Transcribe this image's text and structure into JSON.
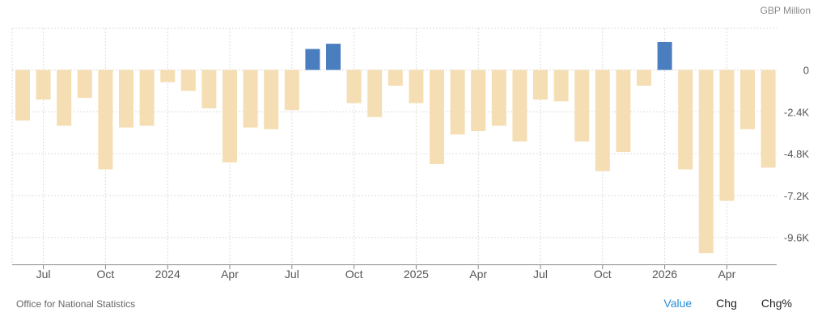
{
  "unit_label": "GBP Million",
  "source": "Office for National Statistics",
  "tabs": [
    {
      "label": "Value",
      "active": true
    },
    {
      "label": "Chg",
      "active": false
    },
    {
      "label": "Chg%",
      "active": false
    }
  ],
  "colors": {
    "negative": "#f5deb3",
    "positive": "#4a7ebf",
    "grid": "#dddddd",
    "axis": "#888888"
  },
  "chart_data": {
    "type": "bar",
    "title": "",
    "xlabel": "",
    "ylabel": "GBP Million",
    "ylim": [
      -11400,
      2400
    ],
    "yticks": [
      0,
      -2400,
      -4800,
      -7200,
      -9600
    ],
    "ytick_labels": [
      "0",
      "-2.4K",
      "-4.8K",
      "-7.2K",
      "-9.6K"
    ],
    "xtick_labels": [
      {
        "label": "Jul",
        "index": 1
      },
      {
        "label": "Oct",
        "index": 4
      },
      {
        "label": "2024",
        "index": 7
      },
      {
        "label": "Apr",
        "index": 10
      },
      {
        "label": "Jul",
        "index": 13
      },
      {
        "label": "Oct",
        "index": 16
      },
      {
        "label": "2025",
        "index": 19
      },
      {
        "label": "Apr",
        "index": 22
      },
      {
        "label": "Jul",
        "index": 25
      },
      {
        "label": "Oct",
        "index": 28
      },
      {
        "label": "2026",
        "index": 31
      },
      {
        "label": "Apr",
        "index": 34
      }
    ],
    "categories": [
      "Jun 2023",
      "Jul 2023",
      "Aug 2023",
      "Sep 2023",
      "Oct 2023",
      "Nov 2023",
      "Dec 2023",
      "Jan 2024",
      "Feb 2024",
      "Mar 2024",
      "Apr 2024",
      "May 2024",
      "Jun 2024",
      "Jul 2024",
      "Aug 2024",
      "Sep 2024",
      "Oct 2024",
      "Nov 2024",
      "Dec 2024",
      "Jan 2025",
      "Feb 2025",
      "Mar 2025",
      "Apr 2025",
      "May 2025",
      "Jun 2025",
      "Jul 2025",
      "Aug 2025",
      "Sep 2025",
      "Oct 2025",
      "Nov 2025",
      "Dec 2025",
      "Jan 2026",
      "Feb 2026",
      "Mar 2026",
      "Apr 2026",
      "May 2026",
      "Jun 2026"
    ],
    "values": [
      -2900,
      -1700,
      -3200,
      -1600,
      -5700,
      -3300,
      -3200,
      -700,
      -1200,
      -2200,
      -5300,
      -3300,
      -3400,
      -2300,
      1200,
      1500,
      -1900,
      -2700,
      -900,
      -1900,
      -5400,
      -3700,
      -3500,
      -3200,
      -4100,
      -1700,
      -1800,
      -4100,
      -5800,
      -4700,
      -900,
      1600,
      -5700,
      -10500,
      -7500,
      -3400,
      -5600
    ]
  }
}
